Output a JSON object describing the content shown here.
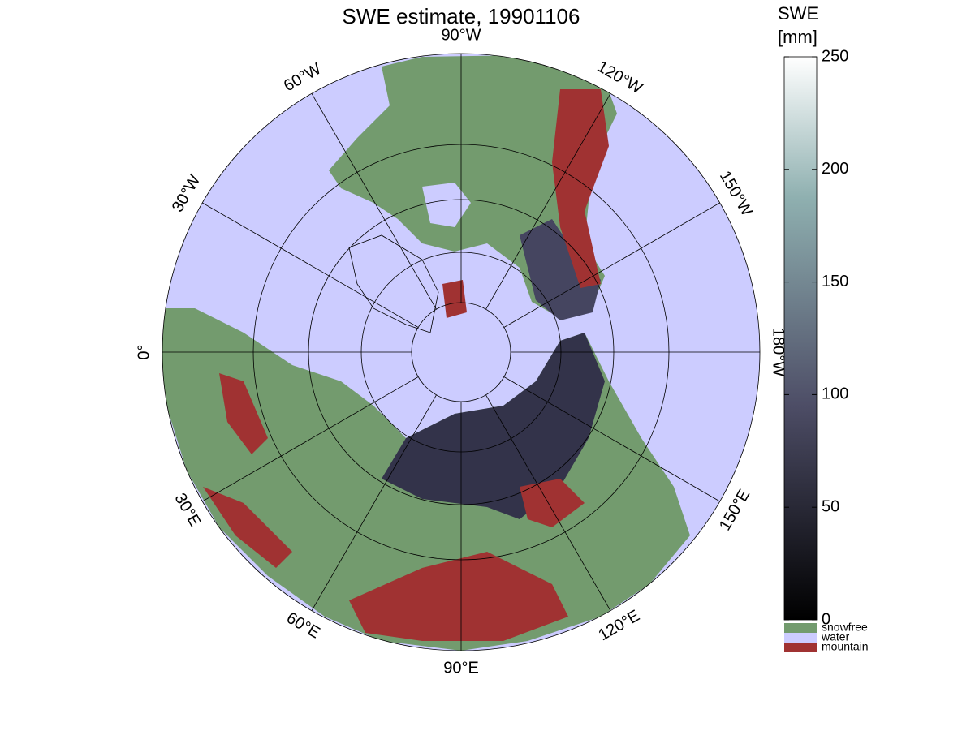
{
  "title": "SWE estimate, 19901106",
  "meridian_labels": [
    "0°",
    "30°W",
    "60°W",
    "90°W",
    "120°W",
    "150°W",
    "180°W",
    "150°E",
    "120°E",
    "90°E",
    "60°E",
    "30°E"
  ],
  "colorbar": {
    "label": [
      "SWE",
      "[mm]"
    ],
    "lim": [
      0,
      250
    ],
    "ticks": [
      0,
      50,
      100,
      150,
      200,
      250
    ]
  },
  "legend": [
    {
      "name": "snowfree",
      "color": "#739b6e"
    },
    {
      "name": "water",
      "color": "#ccccff"
    },
    {
      "name": "mountain",
      "color": "#a03232"
    }
  ]
}
